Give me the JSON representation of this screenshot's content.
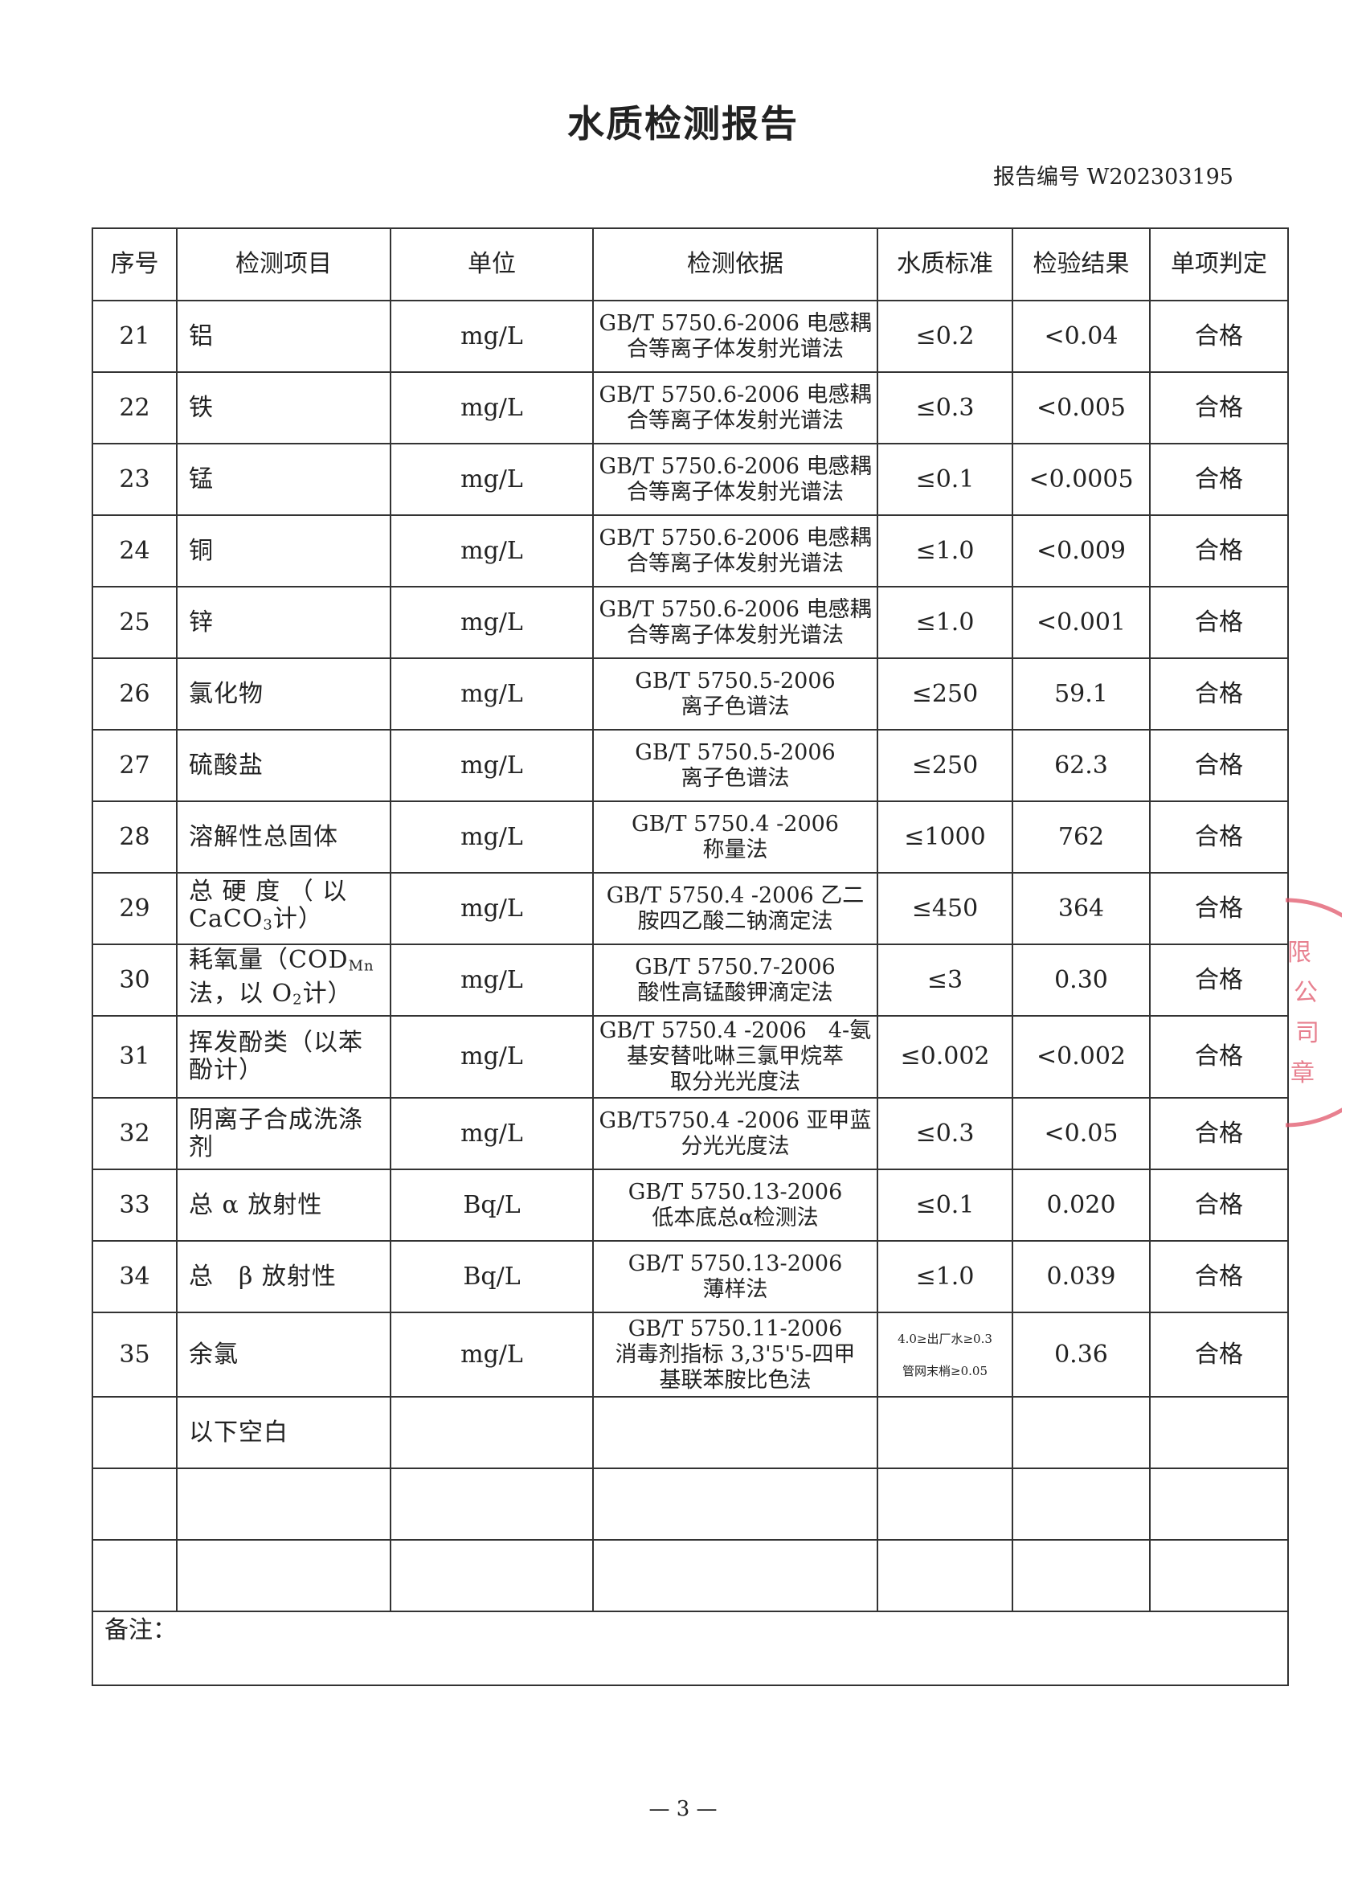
{
  "title": "水质检测报告",
  "report_no": "报告编号 W202303195",
  "headers": [
    "序号",
    "检测项目",
    "单位",
    "检测依据",
    "水质标准",
    "检验结果",
    "单项判定"
  ],
  "rows": [
    {
      "no": "21",
      "item": [
        {
          "t": "铝"
        }
      ],
      "unit": "mg/L",
      "basis": [
        "GB/T 5750.6-2006 电感耦",
        "合等离子体发射光谱法"
      ],
      "std": [
        "≤0.2"
      ],
      "result": "<0.04",
      "verdict": "合格"
    },
    {
      "no": "22",
      "item": [
        {
          "t": "铁"
        }
      ],
      "unit": "mg/L",
      "basis": [
        "GB/T 5750.6-2006 电感耦",
        "合等离子体发射光谱法"
      ],
      "std": [
        "≤0.3"
      ],
      "result": "<0.005",
      "verdict": "合格"
    },
    {
      "no": "23",
      "item": [
        {
          "t": "锰"
        }
      ],
      "unit": "mg/L",
      "basis": [
        "GB/T 5750.6-2006 电感耦",
        "合等离子体发射光谱法"
      ],
      "std": [
        "≤0.1"
      ],
      "result": "<0.0005",
      "verdict": "合格"
    },
    {
      "no": "24",
      "item": [
        {
          "t": "铜"
        }
      ],
      "unit": "mg/L",
      "basis": [
        "GB/T 5750.6-2006 电感耦",
        "合等离子体发射光谱法"
      ],
      "std": [
        "≤1.0"
      ],
      "result": "<0.009",
      "verdict": "合格"
    },
    {
      "no": "25",
      "item": [
        {
          "t": "锌"
        }
      ],
      "unit": "mg/L",
      "basis": [
        "GB/T 5750.6-2006 电感耦",
        "合等离子体发射光谱法"
      ],
      "std": [
        "≤1.0"
      ],
      "result": "<0.001",
      "verdict": "合格"
    },
    {
      "no": "26",
      "item": [
        {
          "t": "氯化物"
        }
      ],
      "unit": "mg/L",
      "basis": [
        "GB/T 5750.5-2006",
        "离子色谱法"
      ],
      "std": [
        "≤250"
      ],
      "result": "59.1",
      "verdict": "合格"
    },
    {
      "no": "27",
      "item": [
        {
          "t": "硫酸盐"
        }
      ],
      "unit": "mg/L",
      "basis": [
        "GB/T 5750.5-2006",
        "离子色谱法"
      ],
      "std": [
        "≤250"
      ],
      "result": "62.3",
      "verdict": "合格"
    },
    {
      "no": "28",
      "item": [
        {
          "t": "溶解性总固体"
        }
      ],
      "unit": "mg/L",
      "basis": [
        "GB/T 5750.4 -2006",
        "称量法"
      ],
      "std": [
        "≤1000"
      ],
      "result": "762",
      "verdict": "合格"
    },
    {
      "no": "29",
      "item": [
        {
          "t": "总 硬 度 （ 以 CaCO"
        },
        {
          "t": "3",
          "sub": true
        },
        {
          "t": "计）"
        }
      ],
      "unit": "mg/L",
      "basis": [
        "GB/T 5750.4 -2006 乙二",
        "胺四乙酸二钠滴定法"
      ],
      "std": [
        "≤450"
      ],
      "result": "364",
      "verdict": "合格"
    },
    {
      "no": "30",
      "item": [
        {
          "t": "耗氧量（COD"
        },
        {
          "t": "Mn",
          "sub": true
        },
        {
          "t": "法，以 O"
        },
        {
          "t": "2",
          "sub": true
        },
        {
          "t": "计）"
        }
      ],
      "unit": "mg/L",
      "basis": [
        "GB/T 5750.7-2006",
        "酸性高锰酸钾滴定法"
      ],
      "std": [
        "≤3"
      ],
      "result": "0.30",
      "verdict": "合格"
    },
    {
      "no": "31",
      "item": [
        {
          "t": "挥发酚类（以苯酚计）"
        }
      ],
      "unit": "mg/L",
      "basis": [
        "GB/T 5750.4 -2006　4-氨",
        "基安替吡啉三氯甲烷萃",
        "取分光光度法"
      ],
      "std": [
        "≤0.002"
      ],
      "result": "<0.002",
      "verdict": "合格"
    },
    {
      "no": "32",
      "item": [
        {
          "t": "阴离子合成洗涤剂"
        }
      ],
      "unit": "mg/L",
      "basis": [
        "GB/T5750.4 -2006 亚甲蓝",
        "分光光度法"
      ],
      "std": [
        "≤0.3"
      ],
      "result": "<0.05",
      "verdict": "合格"
    },
    {
      "no": "33",
      "item": [
        {
          "t": "总 α 放射性"
        }
      ],
      "unit": "Bq/L",
      "basis": [
        "GB/T 5750.13-2006",
        "低本底总α检测法"
      ],
      "std": [
        "≤0.1"
      ],
      "result": "0.020",
      "verdict": "合格"
    },
    {
      "no": "34",
      "item": [
        {
          "t": "总　β 放射性"
        }
      ],
      "unit": "Bq/L",
      "basis": [
        "GB/T 5750.13-2006",
        "薄样法"
      ],
      "std": [
        "≤1.0"
      ],
      "result": "0.039",
      "verdict": "合格"
    },
    {
      "no": "35",
      "item": [
        {
          "t": "余氯"
        }
      ],
      "unit": "mg/L",
      "basis": [
        "GB/T 5750.11-2006",
        "消毒剂指标 3,3'5'5-四甲",
        "基联苯胺比色法"
      ],
      "std": [
        "4.0≥出厂水≥0.3",
        "管网末梢≥0.05"
      ],
      "result": "0.36",
      "verdict": "合格"
    },
    {
      "no": "",
      "item": [
        {
          "t": "以下空白"
        }
      ],
      "unit": "",
      "basis": [],
      "std": [],
      "result": "",
      "verdict": ""
    },
    {
      "no": "",
      "item": [],
      "unit": "",
      "basis": [],
      "std": [],
      "result": "",
      "verdict": ""
    },
    {
      "no": "",
      "item": [],
      "unit": "",
      "basis": [],
      "std": [],
      "result": "",
      "verdict": ""
    }
  ],
  "remark_label": "备注：",
  "page_no": "— 3 —",
  "stamp_text": "限公司章",
  "stamp_color": "#e0566a"
}
